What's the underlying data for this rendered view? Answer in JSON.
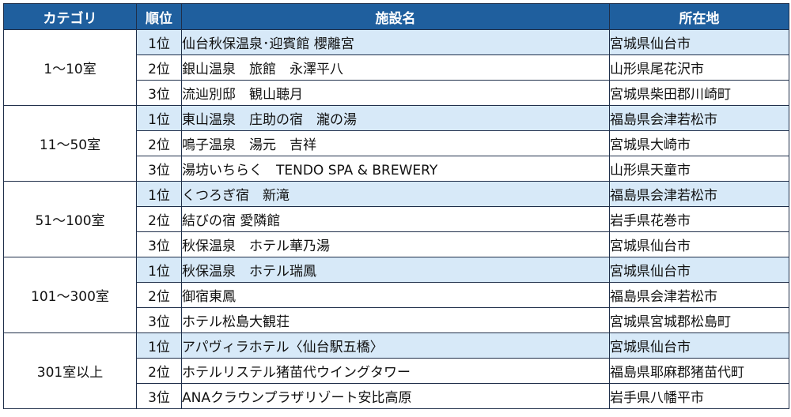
{
  "table": {
    "headers": {
      "category": "カテゴリ",
      "rank": "順位",
      "facility": "施設名",
      "location": "所在地"
    },
    "groups": [
      {
        "category": "1〜10室",
        "rows": [
          {
            "rank": "1位",
            "facility": "仙台秋保温泉･迎賓館 櫻離宮",
            "location": "宮城県仙台市"
          },
          {
            "rank": "2位",
            "facility": "銀山温泉　旅館　永澤平八",
            "location": "山形県尾花沢市"
          },
          {
            "rank": "3位",
            "facility": "流辿別邸　観山聴月",
            "location": "宮城県柴田郡川崎町"
          }
        ]
      },
      {
        "category": "11〜50室",
        "rows": [
          {
            "rank": "1位",
            "facility": "東山温泉　庄助の宿　瀧の湯",
            "location": "福島県会津若松市"
          },
          {
            "rank": "2位",
            "facility": "鳴子温泉　湯元　吉祥",
            "location": "宮城県大崎市"
          },
          {
            "rank": "3位",
            "facility": "湯坊いちらく　TENDO SPA & BREWERY",
            "location": "山形県天童市"
          }
        ]
      },
      {
        "category": "51〜100室",
        "rows": [
          {
            "rank": "1位",
            "facility": "くつろぎ宿　新滝",
            "location": "福島県会津若松市"
          },
          {
            "rank": "2位",
            "facility": "結びの宿 愛隣館",
            "location": "岩手県花巻市"
          },
          {
            "rank": "3位",
            "facility": "秋保温泉　ホテル華乃湯",
            "location": "宮城県仙台市"
          }
        ]
      },
      {
        "category": "101〜300室",
        "rows": [
          {
            "rank": "1位",
            "facility": "秋保温泉　ホテル瑞鳳",
            "location": "宮城県仙台市"
          },
          {
            "rank": "2位",
            "facility": "御宿東鳳",
            "location": "福島県会津若松市"
          },
          {
            "rank": "3位",
            "facility": "ホテル松島大観荘",
            "location": "宮城県宮城郡松島町"
          }
        ]
      },
      {
        "category": "301室以上",
        "rows": [
          {
            "rank": "1位",
            "facility": "アパヴィラホテル〈仙台駅五橋〉",
            "location": "宮城県仙台市"
          },
          {
            "rank": "2位",
            "facility": "ホテルリステル猪苗代ウイングタワー",
            "location": "福島県耶麻郡猪苗代町"
          },
          {
            "rank": "3位",
            "facility": "ANAクラウンプラザリゾート安比高原",
            "location": "岩手県八幡平市"
          }
        ]
      }
    ]
  }
}
